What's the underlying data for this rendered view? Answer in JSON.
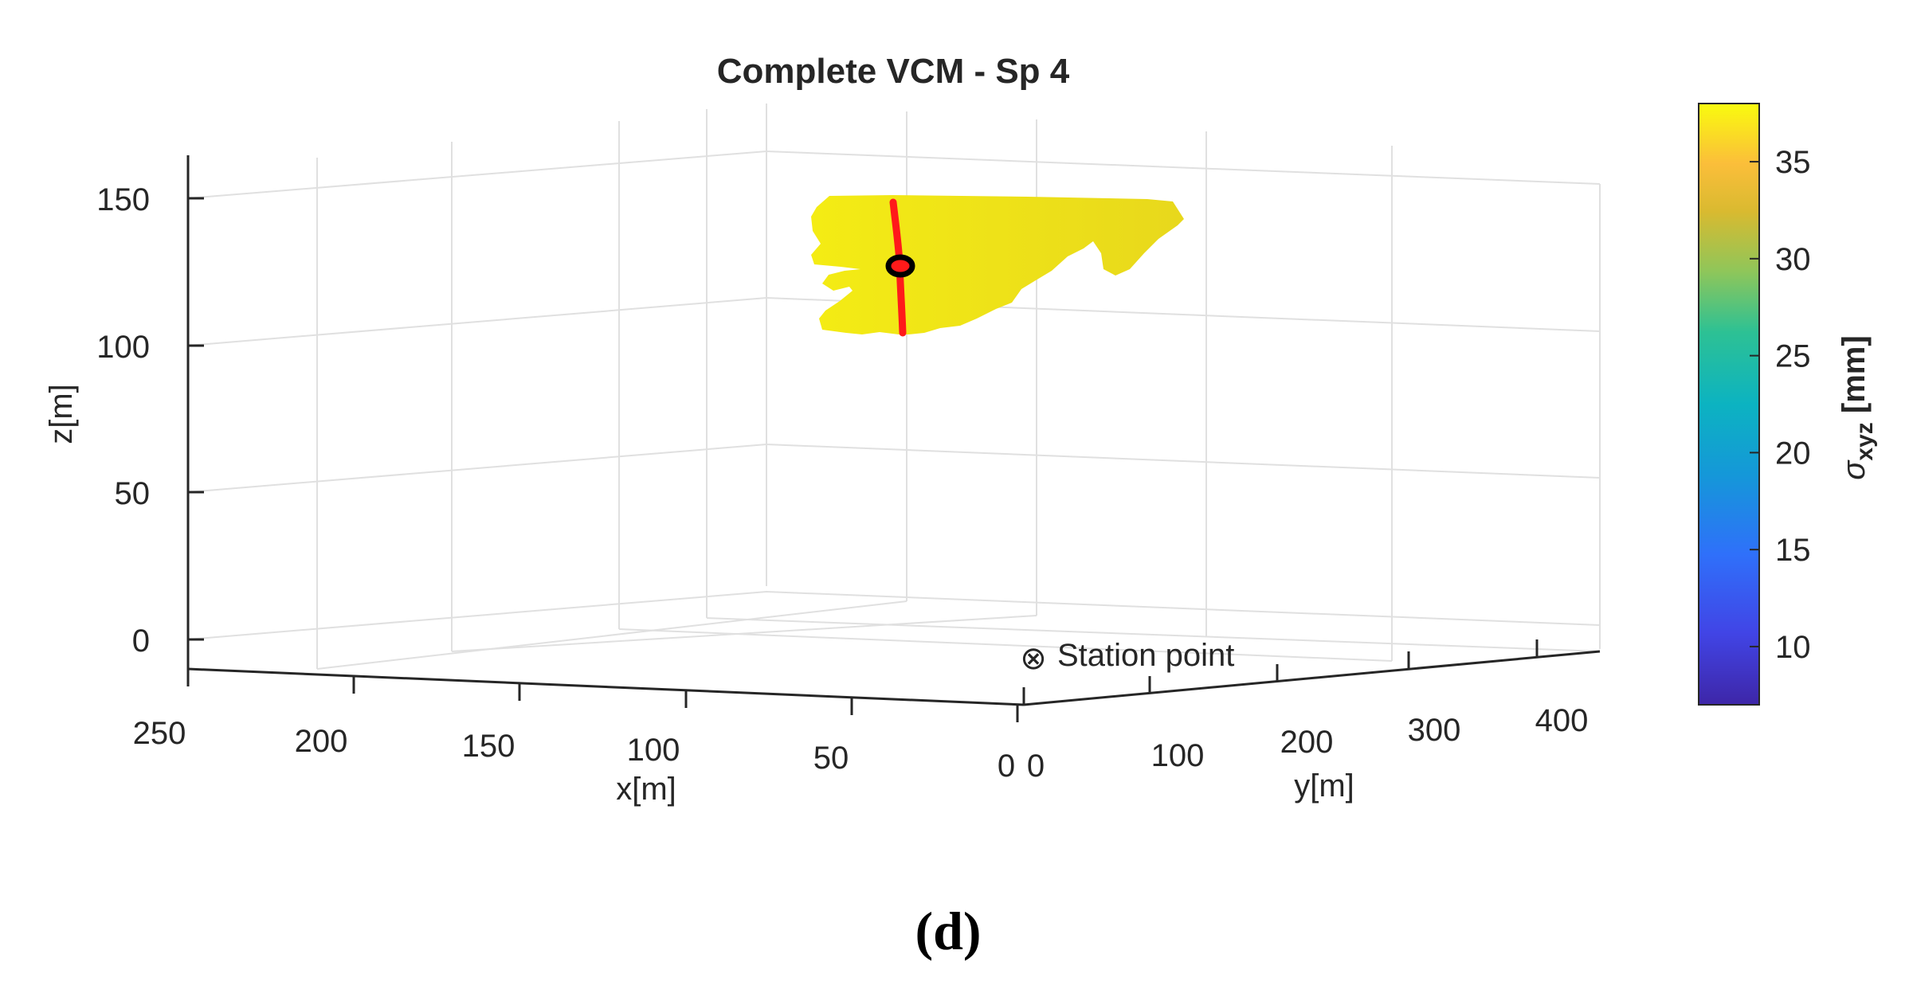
{
  "chart_data": {
    "type": "scatter",
    "title": "Complete VCM - Sp 4",
    "xlabel": "x[m]",
    "ylabel": "y[m]",
    "zlabel": "z[m]",
    "xlim": [
      0,
      250
    ],
    "ylim": [
      0,
      400
    ],
    "zlim": [
      -10,
      160
    ],
    "xticks": [
      "250",
      "200",
      "150",
      "100",
      "50",
      "0"
    ],
    "yticks": [
      "0",
      "100",
      "200",
      "300",
      "400"
    ],
    "zticks": [
      "0",
      "50",
      "100",
      "150"
    ],
    "grid": true,
    "colorbar": {
      "label": "σ xyz [mm]",
      "label_symbol": "σ",
      "label_subscript": "xyz",
      "label_unit": "[mm]",
      "range": [
        7,
        38
      ],
      "ticks": [
        "10",
        "15",
        "20",
        "25",
        "30",
        "35"
      ],
      "colormap": "parula"
    },
    "point_cloud": {
      "approx_sigma_mm": 36,
      "color": "#f1e614",
      "z_range": [
        103,
        150
      ]
    },
    "profile_line": {
      "color": "#ff1a1a",
      "z_range": [
        103,
        150
      ]
    },
    "marker": {
      "color": "#000000",
      "z": 126
    },
    "station_point": {
      "symbol": "⊗",
      "label": "Station point"
    },
    "panel_label": "(d)"
  }
}
